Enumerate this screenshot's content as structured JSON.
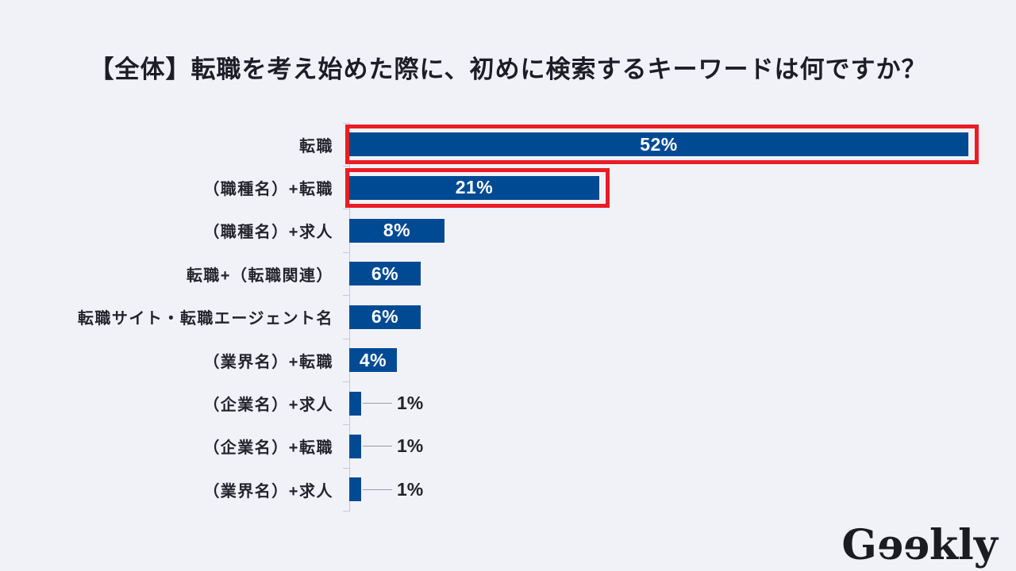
{
  "title": "【全体】転職を考え始めた際に、初めに検索するキーワードは何ですか？",
  "chart_data": {
    "type": "bar",
    "orientation": "horizontal",
    "title": "【全体】転職を考え始めた際に、初めに検索するキーワードは何ですか？",
    "categories": [
      "転職",
      "（職種名）+転職",
      "（職種名）+求人",
      "転職+（転職関連）",
      "転職サイト・転職エージェント名",
      "（業界名）+転職",
      "（企業名）+求人",
      "（企業名）+転職",
      "（業界名）+求人"
    ],
    "values": [
      52,
      21,
      8,
      6,
      6,
      4,
      1,
      1,
      1
    ],
    "value_labels": [
      "52%",
      "21%",
      "8%",
      "6%",
      "6%",
      "4%",
      "1%",
      "1%",
      "1%"
    ],
    "highlighted_indices": [
      0,
      1
    ],
    "xlim": [
      0,
      55
    ],
    "grid": false,
    "legend": "none",
    "colors": {
      "bar": "#004a94",
      "highlight_border": "#ea1c24",
      "value_label_inside": "#ffffff",
      "value_label_outside": "#222229",
      "axis": "#c8cad2",
      "background": "#f1f2f7",
      "title_text": "#1d1d28"
    }
  },
  "footer": {
    "logo_text": "Geekly",
    "logo_g": "G",
    "logo_ee": "ee",
    "logo_kly": "kly"
  }
}
